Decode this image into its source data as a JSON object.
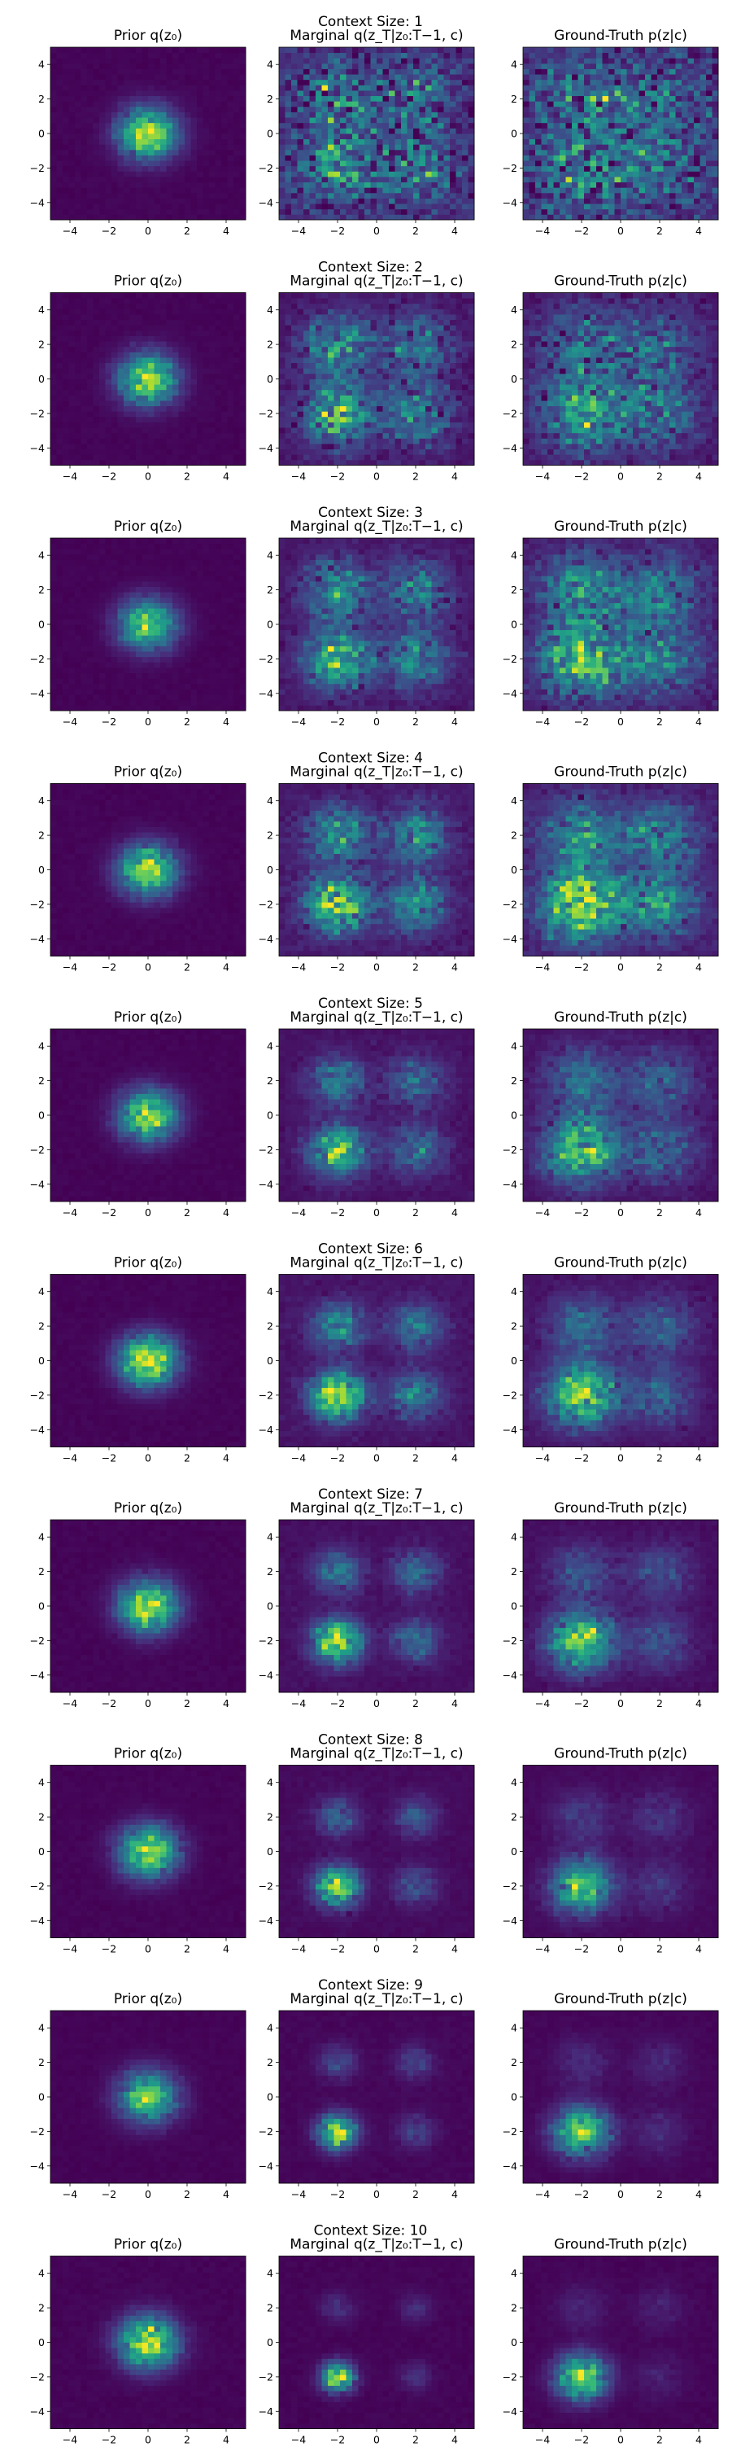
{
  "figure": {
    "background": "#ffffff",
    "colormap": "viridis"
  },
  "chart_data": {
    "type": "heatmap",
    "panel_titles": [
      "Prior q(z₀)",
      "Marginal q(z_T|z₀:T−1, c)",
      "Ground-Truth p(z|c)"
    ],
    "xlim": [
      -5,
      5
    ],
    "ylim": [
      -5,
      5
    ],
    "xticks": [
      -4,
      -2,
      0,
      2,
      4
    ],
    "yticks": [
      -4,
      -2,
      0,
      2,
      4
    ],
    "bins": 32,
    "grid": false,
    "rows": [
      {
        "title": "Context Size: 1",
        "context_size": 1
      },
      {
        "title": "Context Size: 2",
        "context_size": 2
      },
      {
        "title": "Context Size: 3",
        "context_size": 3
      },
      {
        "title": "Context Size: 4",
        "context_size": 4
      },
      {
        "title": "Context Size: 5",
        "context_size": 5
      },
      {
        "title": "Context Size: 6",
        "context_size": 6
      },
      {
        "title": "Context Size: 7",
        "context_size": 7
      },
      {
        "title": "Context Size: 8",
        "context_size": 8
      },
      {
        "title": "Context Size: 9",
        "context_size": 9
      },
      {
        "title": "Context Size: 10",
        "context_size": 10
      }
    ],
    "prior_distribution": {
      "center": [
        0,
        0
      ],
      "std": 1.0
    },
    "mixture_components": [
      {
        "center": [
          -2,
          -2
        ]
      },
      {
        "center": [
          -2,
          2
        ]
      },
      {
        "center": [
          2,
          2
        ]
      },
      {
        "center": [
          2,
          -2
        ]
      }
    ]
  }
}
